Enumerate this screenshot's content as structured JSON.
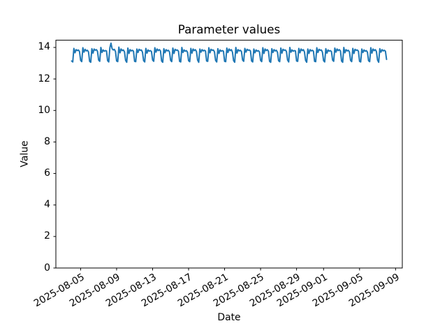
{
  "figure": {
    "background": "#ffffff"
  },
  "chart_data": {
    "type": "line",
    "title": "Parameter values",
    "xlabel": "Date",
    "ylabel": "Value",
    "line_color": "#1f77b4",
    "axis_color": "#000000",
    "grid": "off",
    "legend": "none",
    "x_start_date": "2025-08-04",
    "x_step_hours": 3,
    "xlim_days": [
      -1.75,
      36.75
    ],
    "ylim": [
      0,
      14.46
    ],
    "y_ticks": [
      0,
      2,
      4,
      6,
      8,
      10,
      12,
      14
    ],
    "x_ticks": [
      {
        "label": "2025-08-05",
        "day": 1
      },
      {
        "label": "2025-08-09",
        "day": 5
      },
      {
        "label": "2025-08-13",
        "day": 9
      },
      {
        "label": "2025-08-17",
        "day": 13
      },
      {
        "label": "2025-08-21",
        "day": 17
      },
      {
        "label": "2025-08-25",
        "day": 21
      },
      {
        "label": "2025-08-29",
        "day": 25
      },
      {
        "label": "2025-09-01",
        "day": 28
      },
      {
        "label": "2025-09-05",
        "day": 32
      },
      {
        "label": "2025-09-09",
        "day": 36
      }
    ],
    "values": [
      13.14,
      13.08,
      13.94,
      13.66,
      13.86,
      13.8,
      13.84,
      13.74,
      13.18,
      13.1,
      13.98,
      13.7,
      13.88,
      13.78,
      13.82,
      13.72,
      13.12,
      13.06,
      13.92,
      13.64,
      13.9,
      13.82,
      13.86,
      13.76,
      13.2,
      13.12,
      14.0,
      13.68,
      13.84,
      13.76,
      13.8,
      13.78,
      13.16,
      13.08,
      13.98,
      14.27,
      13.92,
      13.84,
      13.88,
      13.74,
      13.14,
      13.1,
      14.02,
      13.66,
      13.9,
      13.8,
      13.84,
      13.72,
      13.18,
      13.06,
      13.96,
      13.62,
      13.86,
      13.78,
      13.82,
      13.76,
      13.12,
      13.1,
      13.9,
      13.68,
      13.88,
      13.82,
      13.84,
      13.7,
      13.16,
      13.08,
      13.94,
      13.64,
      13.84,
      13.76,
      13.8,
      13.74,
      13.2,
      13.12,
      13.98,
      13.7,
      13.9,
      13.8,
      13.86,
      13.78,
      13.14,
      13.06,
      13.92,
      13.66,
      13.86,
      13.78,
      13.82,
      13.72,
      13.18,
      13.1,
      13.96,
      13.62,
      13.88,
      13.82,
      13.84,
      13.76,
      13.12,
      13.08,
      14.0,
      13.68,
      13.84,
      13.76,
      13.8,
      13.7,
      13.16,
      13.1,
      13.94,
      13.64,
      13.9,
      13.8,
      13.86,
      13.74,
      13.2,
      13.06,
      13.9,
      13.7,
      13.86,
      13.78,
      13.82,
      13.78,
      13.14,
      13.12,
      13.98,
      13.66,
      13.88,
      13.82,
      13.84,
      13.72,
      13.18,
      13.08,
      13.92,
      13.62,
      13.84,
      13.76,
      13.8,
      13.76,
      13.12,
      13.1,
      13.96,
      13.68,
      13.9,
      13.8,
      13.86,
      13.7,
      13.16,
      13.06,
      14.0,
      13.64,
      13.86,
      13.78,
      13.82,
      13.74,
      13.2,
      13.12,
      13.94,
      13.7,
      13.88,
      13.82,
      13.84,
      13.78,
      13.14,
      13.08,
      13.9,
      13.66,
      13.84,
      13.76,
      13.8,
      13.72,
      13.18,
      13.1,
      13.98,
      13.62,
      13.9,
      13.8,
      13.86,
      13.76,
      13.12,
      13.06,
      13.92,
      13.68,
      13.86,
      13.78,
      13.82,
      13.7,
      13.16,
      13.1,
      13.96,
      13.64,
      13.88,
      13.82,
      13.84,
      13.74,
      13.2,
      13.08,
      14.0,
      13.7,
      13.84,
      13.76,
      13.8,
      13.78,
      13.14,
      13.12,
      13.94,
      13.66,
      13.9,
      13.8,
      13.86,
      13.72,
      13.18,
      13.06,
      13.9,
      13.62,
      13.86,
      13.78,
      13.82,
      13.76,
      13.12,
      13.1,
      13.98,
      13.68,
      13.88,
      13.82,
      13.84,
      13.7,
      13.16,
      13.08,
      13.92,
      13.64,
      13.84,
      13.76,
      13.8,
      13.74,
      13.2,
      13.12,
      13.96,
      13.7,
      13.9,
      13.8,
      13.86,
      13.78,
      13.14,
      13.06,
      14.0,
      13.66,
      13.86,
      13.78,
      13.82,
      13.72,
      13.18,
      13.1,
      13.94,
      13.62,
      13.88,
      13.82,
      13.84,
      13.76,
      13.12,
      13.08,
      13.9,
      13.68,
      13.84,
      13.76,
      13.8,
      13.7,
      13.16,
      13.1,
      13.98,
      13.64,
      13.9,
      13.8,
      13.86,
      13.74,
      13.2,
      13.06,
      13.92,
      13.7,
      13.86,
      13.78,
      13.82,
      13.76,
      13.24
    ]
  }
}
